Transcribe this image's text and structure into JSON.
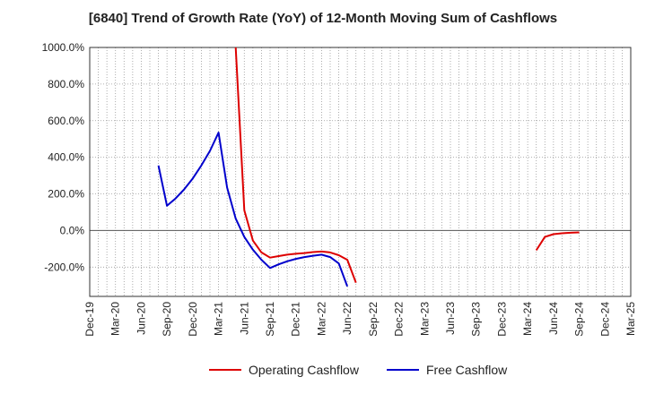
{
  "chart_data": {
    "type": "line",
    "title": "[6840]  Trend of Growth Rate (YoY) of 12-Month Moving Sum of Cashflows",
    "xlabel": "",
    "ylabel": "",
    "ylim": [
      -360,
      1000
    ],
    "y_ticks": [
      "1000.0%",
      "800.0%",
      "600.0%",
      "400.0%",
      "200.0%",
      "0.0%",
      "-200.0%"
    ],
    "y_tick_values": [
      1000,
      800,
      600,
      400,
      200,
      0,
      -200
    ],
    "x_ticks": [
      "Dec-19",
      "Mar-20",
      "Jun-20",
      "Sep-20",
      "Dec-20",
      "Mar-21",
      "Jun-21",
      "Sep-21",
      "Dec-21",
      "Mar-22",
      "Jun-22",
      "Sep-22",
      "Dec-22",
      "Mar-23",
      "Jun-23",
      "Sep-23",
      "Dec-23",
      "Mar-24",
      "Jun-24",
      "Sep-24",
      "Dec-24",
      "Mar-25"
    ],
    "x_start": "Dec-19",
    "x_end": "Mar-25",
    "grid": true,
    "legend_position": "bottom",
    "series": [
      {
        "name": "Operating Cashflow",
        "color": "#dd0000",
        "points": [
          [
            "May-21",
            1000
          ],
          [
            "Jun-21",
            110
          ],
          [
            "Jul-21",
            -55
          ],
          [
            "Aug-21",
            -120
          ],
          [
            "Sep-21",
            -148
          ],
          [
            "Oct-21",
            -140
          ],
          [
            "Nov-21",
            -132
          ],
          [
            "Dec-21",
            -127
          ],
          [
            "Jan-22",
            -123
          ],
          [
            "Feb-22",
            -118
          ],
          [
            "Mar-22",
            -115
          ],
          [
            "Apr-22",
            -120
          ],
          [
            "May-22",
            -135
          ],
          [
            "Jun-22",
            -160
          ],
          [
            "Jul-22",
            -285
          ],
          null,
          [
            "Apr-24",
            -108
          ],
          [
            "May-24",
            -35
          ],
          [
            "Jun-24",
            -20
          ],
          [
            "Jul-24",
            -15
          ],
          [
            "Aug-24",
            -12
          ],
          [
            "Sep-24",
            -10
          ]
        ]
      },
      {
        "name": "Free Cashflow",
        "color": "#0000cc",
        "points": [
          [
            "Aug-20",
            355
          ],
          [
            "Sep-20",
            135
          ],
          [
            "Oct-20",
            175
          ],
          [
            "Nov-20",
            225
          ],
          [
            "Dec-20",
            285
          ],
          [
            "Jan-21",
            355
          ],
          [
            "Feb-21",
            435
          ],
          [
            "Mar-21",
            535
          ],
          [
            "Apr-21",
            235
          ],
          [
            "May-21",
            65
          ],
          [
            "Jun-21",
            -35
          ],
          [
            "Jul-21",
            -105
          ],
          [
            "Aug-21",
            -160
          ],
          [
            "Sep-21",
            -205
          ],
          [
            "Oct-21",
            -185
          ],
          [
            "Nov-21",
            -168
          ],
          [
            "Dec-21",
            -155
          ],
          [
            "Jan-22",
            -145
          ],
          [
            "Feb-22",
            -138
          ],
          [
            "Mar-22",
            -132
          ],
          [
            "Apr-22",
            -145
          ],
          [
            "May-22",
            -180
          ],
          [
            "Jun-22",
            -305
          ]
        ]
      }
    ]
  }
}
